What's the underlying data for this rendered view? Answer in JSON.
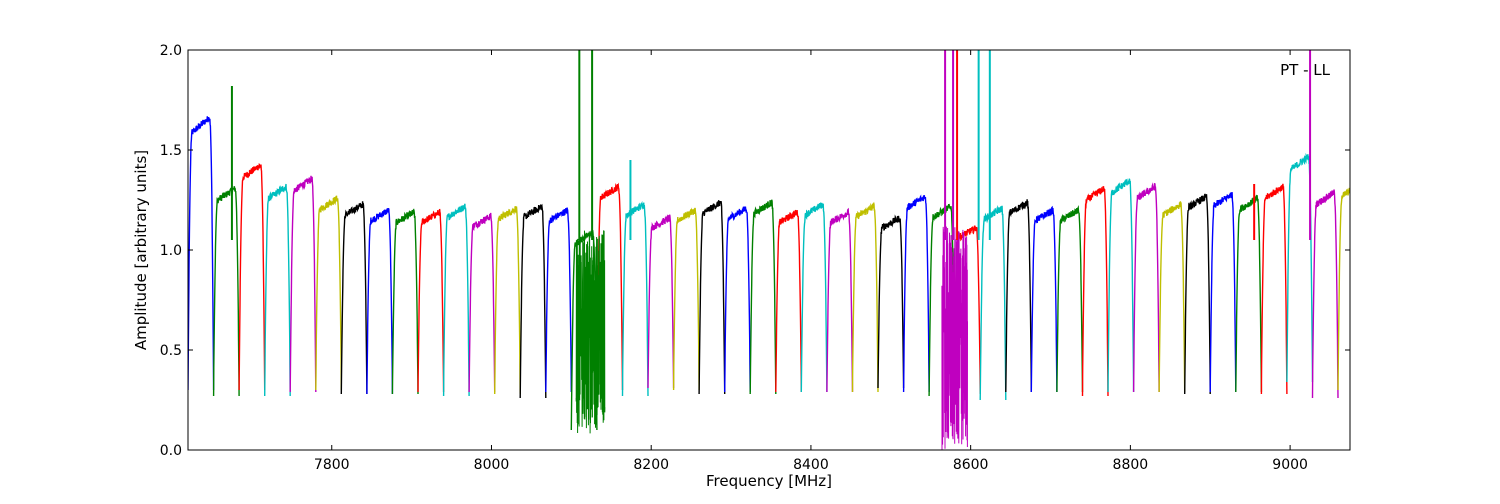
{
  "chart_data": {
    "type": "line",
    "title": "",
    "xlabel": "Frequency [MHz]",
    "ylabel": "Amplitude [arbitrary units]",
    "annotation": "PT - LL",
    "xlim": [
      7620,
      9075
    ],
    "ylim": [
      0,
      2.0
    ],
    "grid": false,
    "x_ticks": [
      7800,
      8000,
      8200,
      8400,
      8600,
      8800,
      9000
    ],
    "y_ticks": [
      0.0,
      0.5,
      1.0,
      1.5,
      2.0
    ],
    "x_tick_labels": [
      "7800",
      "8000",
      "8200",
      "8400",
      "8600",
      "8800",
      "9000"
    ],
    "y_tick_labels": [
      "0.0",
      "0.5",
      "1.0",
      "1.5",
      "2.0"
    ],
    "channel_width_mhz": 32,
    "series_colors": [
      "#0000ff",
      "#008000",
      "#ff0000",
      "#00bfbf",
      "#bf00bf",
      "#bfbf00",
      "#000000"
    ],
    "channels": [
      {
        "start": 7620,
        "peak": 1.68,
        "floor": 0.3,
        "color": "#0000ff"
      },
      {
        "start": 7652,
        "peak": 1.32,
        "floor": 0.27,
        "color": "#008000"
      },
      {
        "start": 7684,
        "peak": 1.44,
        "floor": 0.3,
        "color": "#ff0000"
      },
      {
        "start": 7716,
        "peak": 1.33,
        "floor": 0.27,
        "color": "#00bfbf"
      },
      {
        "start": 7748,
        "peak": 1.37,
        "floor": 0.29,
        "color": "#bf00bf"
      },
      {
        "start": 7780,
        "peak": 1.27,
        "floor": 0.3,
        "color": "#bfbf00"
      },
      {
        "start": 7812,
        "peak": 1.24,
        "floor": 0.28,
        "color": "#000000"
      },
      {
        "start": 7844,
        "peak": 1.21,
        "floor": 0.28,
        "color": "#0000ff"
      },
      {
        "start": 7876,
        "peak": 1.2,
        "floor": 0.28,
        "color": "#008000"
      },
      {
        "start": 7908,
        "peak": 1.2,
        "floor": 0.29,
        "color": "#ff0000"
      },
      {
        "start": 7940,
        "peak": 1.23,
        "floor": 0.27,
        "color": "#00bfbf"
      },
      {
        "start": 7972,
        "peak": 1.18,
        "floor": 0.29,
        "color": "#bf00bf"
      },
      {
        "start": 8004,
        "peak": 1.22,
        "floor": 0.28,
        "color": "#bfbf00"
      },
      {
        "start": 8036,
        "peak": 1.23,
        "floor": 0.26,
        "color": "#000000"
      },
      {
        "start": 8068,
        "peak": 1.21,
        "floor": 0.29,
        "color": "#0000ff"
      },
      {
        "start": 8100,
        "peak": 1.1,
        "floor": 0.1,
        "color": "#008000"
      },
      {
        "start": 8132,
        "peak": 1.33,
        "floor": 0.3,
        "color": "#ff0000"
      },
      {
        "start": 8164,
        "peak": 1.24,
        "floor": 0.27,
        "color": "#00bfbf"
      },
      {
        "start": 8196,
        "peak": 1.17,
        "floor": 0.31,
        "color": "#bf00bf"
      },
      {
        "start": 8228,
        "peak": 1.21,
        "floor": 0.3,
        "color": "#bfbf00"
      },
      {
        "start": 8260,
        "peak": 1.25,
        "floor": 0.28,
        "color": "#000000"
      },
      {
        "start": 8292,
        "peak": 1.22,
        "floor": 0.29,
        "color": "#0000ff"
      },
      {
        "start": 8324,
        "peak": 1.25,
        "floor": 0.28,
        "color": "#008000"
      },
      {
        "start": 8356,
        "peak": 1.2,
        "floor": 0.29,
        "color": "#ff0000"
      },
      {
        "start": 8388,
        "peak": 1.24,
        "floor": 0.29,
        "color": "#00bfbf"
      },
      {
        "start": 8420,
        "peak": 1.2,
        "floor": 0.29,
        "color": "#bf00bf"
      },
      {
        "start": 8452,
        "peak": 1.23,
        "floor": 0.29,
        "color": "#bfbf00"
      },
      {
        "start": 8484,
        "peak": 1.17,
        "floor": 0.31,
        "color": "#000000"
      },
      {
        "start": 8516,
        "peak": 1.28,
        "floor": 0.29,
        "color": "#0000ff"
      },
      {
        "start": 8548,
        "peak": 1.23,
        "floor": 0.27,
        "color": "#008000"
      },
      {
        "start": 8580,
        "peak": 1.12,
        "floor": 0.28,
        "color": "#ff0000"
      },
      {
        "start": 8612,
        "peak": 1.22,
        "floor": 0.25,
        "color": "#00bfbf"
      },
      {
        "start": 8644,
        "peak": 1.25,
        "floor": 0.29,
        "color": "#000000"
      },
      {
        "start": 8676,
        "peak": 1.21,
        "floor": 0.29,
        "color": "#0000ff"
      },
      {
        "start": 8708,
        "peak": 1.21,
        "floor": 0.29,
        "color": "#008000"
      },
      {
        "start": 8740,
        "peak": 1.32,
        "floor": 0.27,
        "color": "#ff0000"
      },
      {
        "start": 8772,
        "peak": 1.36,
        "floor": 0.29,
        "color": "#00bfbf"
      },
      {
        "start": 8804,
        "peak": 1.33,
        "floor": 0.29,
        "color": "#bf00bf"
      },
      {
        "start": 8836,
        "peak": 1.24,
        "floor": 0.29,
        "color": "#bfbf00"
      },
      {
        "start": 8868,
        "peak": 1.28,
        "floor": 0.28,
        "color": "#000000"
      },
      {
        "start": 8900,
        "peak": 1.29,
        "floor": 0.29,
        "color": "#0000ff"
      },
      {
        "start": 8932,
        "peak": 1.27,
        "floor": 0.29,
        "color": "#008000"
      },
      {
        "start": 8964,
        "peak": 1.33,
        "floor": 0.28,
        "color": "#ff0000"
      },
      {
        "start": 8996,
        "peak": 1.48,
        "floor": 0.34,
        "color": "#00bfbf"
      },
      {
        "start": 9028,
        "peak": 1.3,
        "floor": 0.26,
        "color": "#bf00bf"
      },
      {
        "start": 9060,
        "peak": 1.34,
        "floor": 0.3,
        "color": "#bfbf00"
      }
    ],
    "noise_regions": [
      {
        "from": 8106,
        "to": 8142,
        "min": 0.08,
        "max": 1.1,
        "color": "#008000"
      },
      {
        "from": 8564,
        "to": 8596,
        "min": 0.0,
        "max": 1.12,
        "color": "#bf00bf"
      }
    ],
    "spikes": [
      {
        "x": 8110,
        "y": 2.0,
        "color": "#008000"
      },
      {
        "x": 8126,
        "y": 2.0,
        "color": "#008000"
      },
      {
        "x": 7675,
        "y": 1.82,
        "color": "#008000"
      },
      {
        "x": 8174,
        "y": 1.45,
        "color": "#00bfbf"
      },
      {
        "x": 8568,
        "y": 2.0,
        "color": "#bf00bf"
      },
      {
        "x": 8578,
        "y": 2.0,
        "color": "#bf00bf"
      },
      {
        "x": 8583,
        "y": 2.0,
        "color": "#ff0000"
      },
      {
        "x": 8610,
        "y": 2.0,
        "color": "#00bfbf"
      },
      {
        "x": 8624,
        "y": 2.0,
        "color": "#00bfbf"
      },
      {
        "x": 8955,
        "y": 1.33,
        "color": "#ff0000"
      },
      {
        "x": 9025,
        "y": 2.0,
        "color": "#bf00bf"
      }
    ]
  }
}
